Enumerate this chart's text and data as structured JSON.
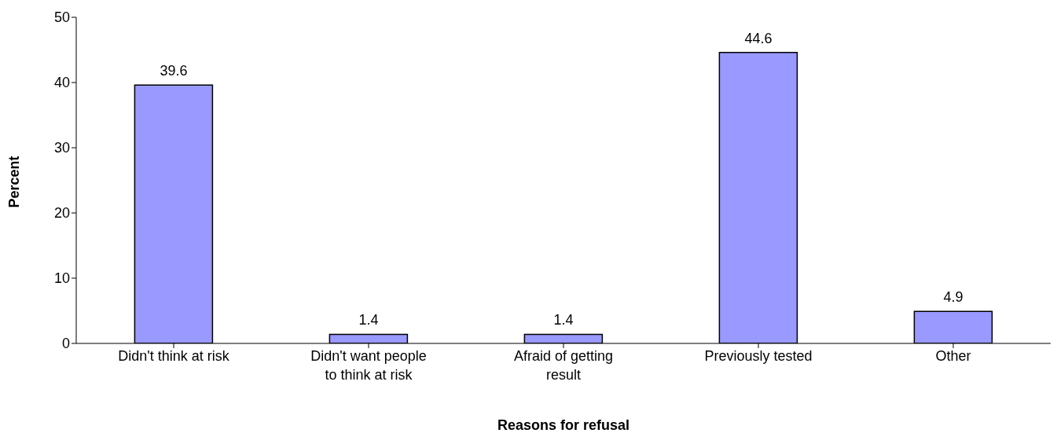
{
  "chart_data": {
    "type": "bar",
    "xlabel": "Reasons for refusal",
    "ylabel": "Percent",
    "categories": [
      "Didn't think at risk",
      "Didn't want people to think at risk",
      "Afraid of getting result",
      "Previously tested",
      "Other"
    ],
    "values": [
      39.6,
      1.4,
      1.4,
      44.6,
      4.9
    ],
    "color": "#9999ff",
    "ylim": [
      0,
      50
    ],
    "yticks": [
      0,
      10,
      20,
      30,
      40,
      50
    ],
    "grid": false,
    "data_labels": true
  }
}
